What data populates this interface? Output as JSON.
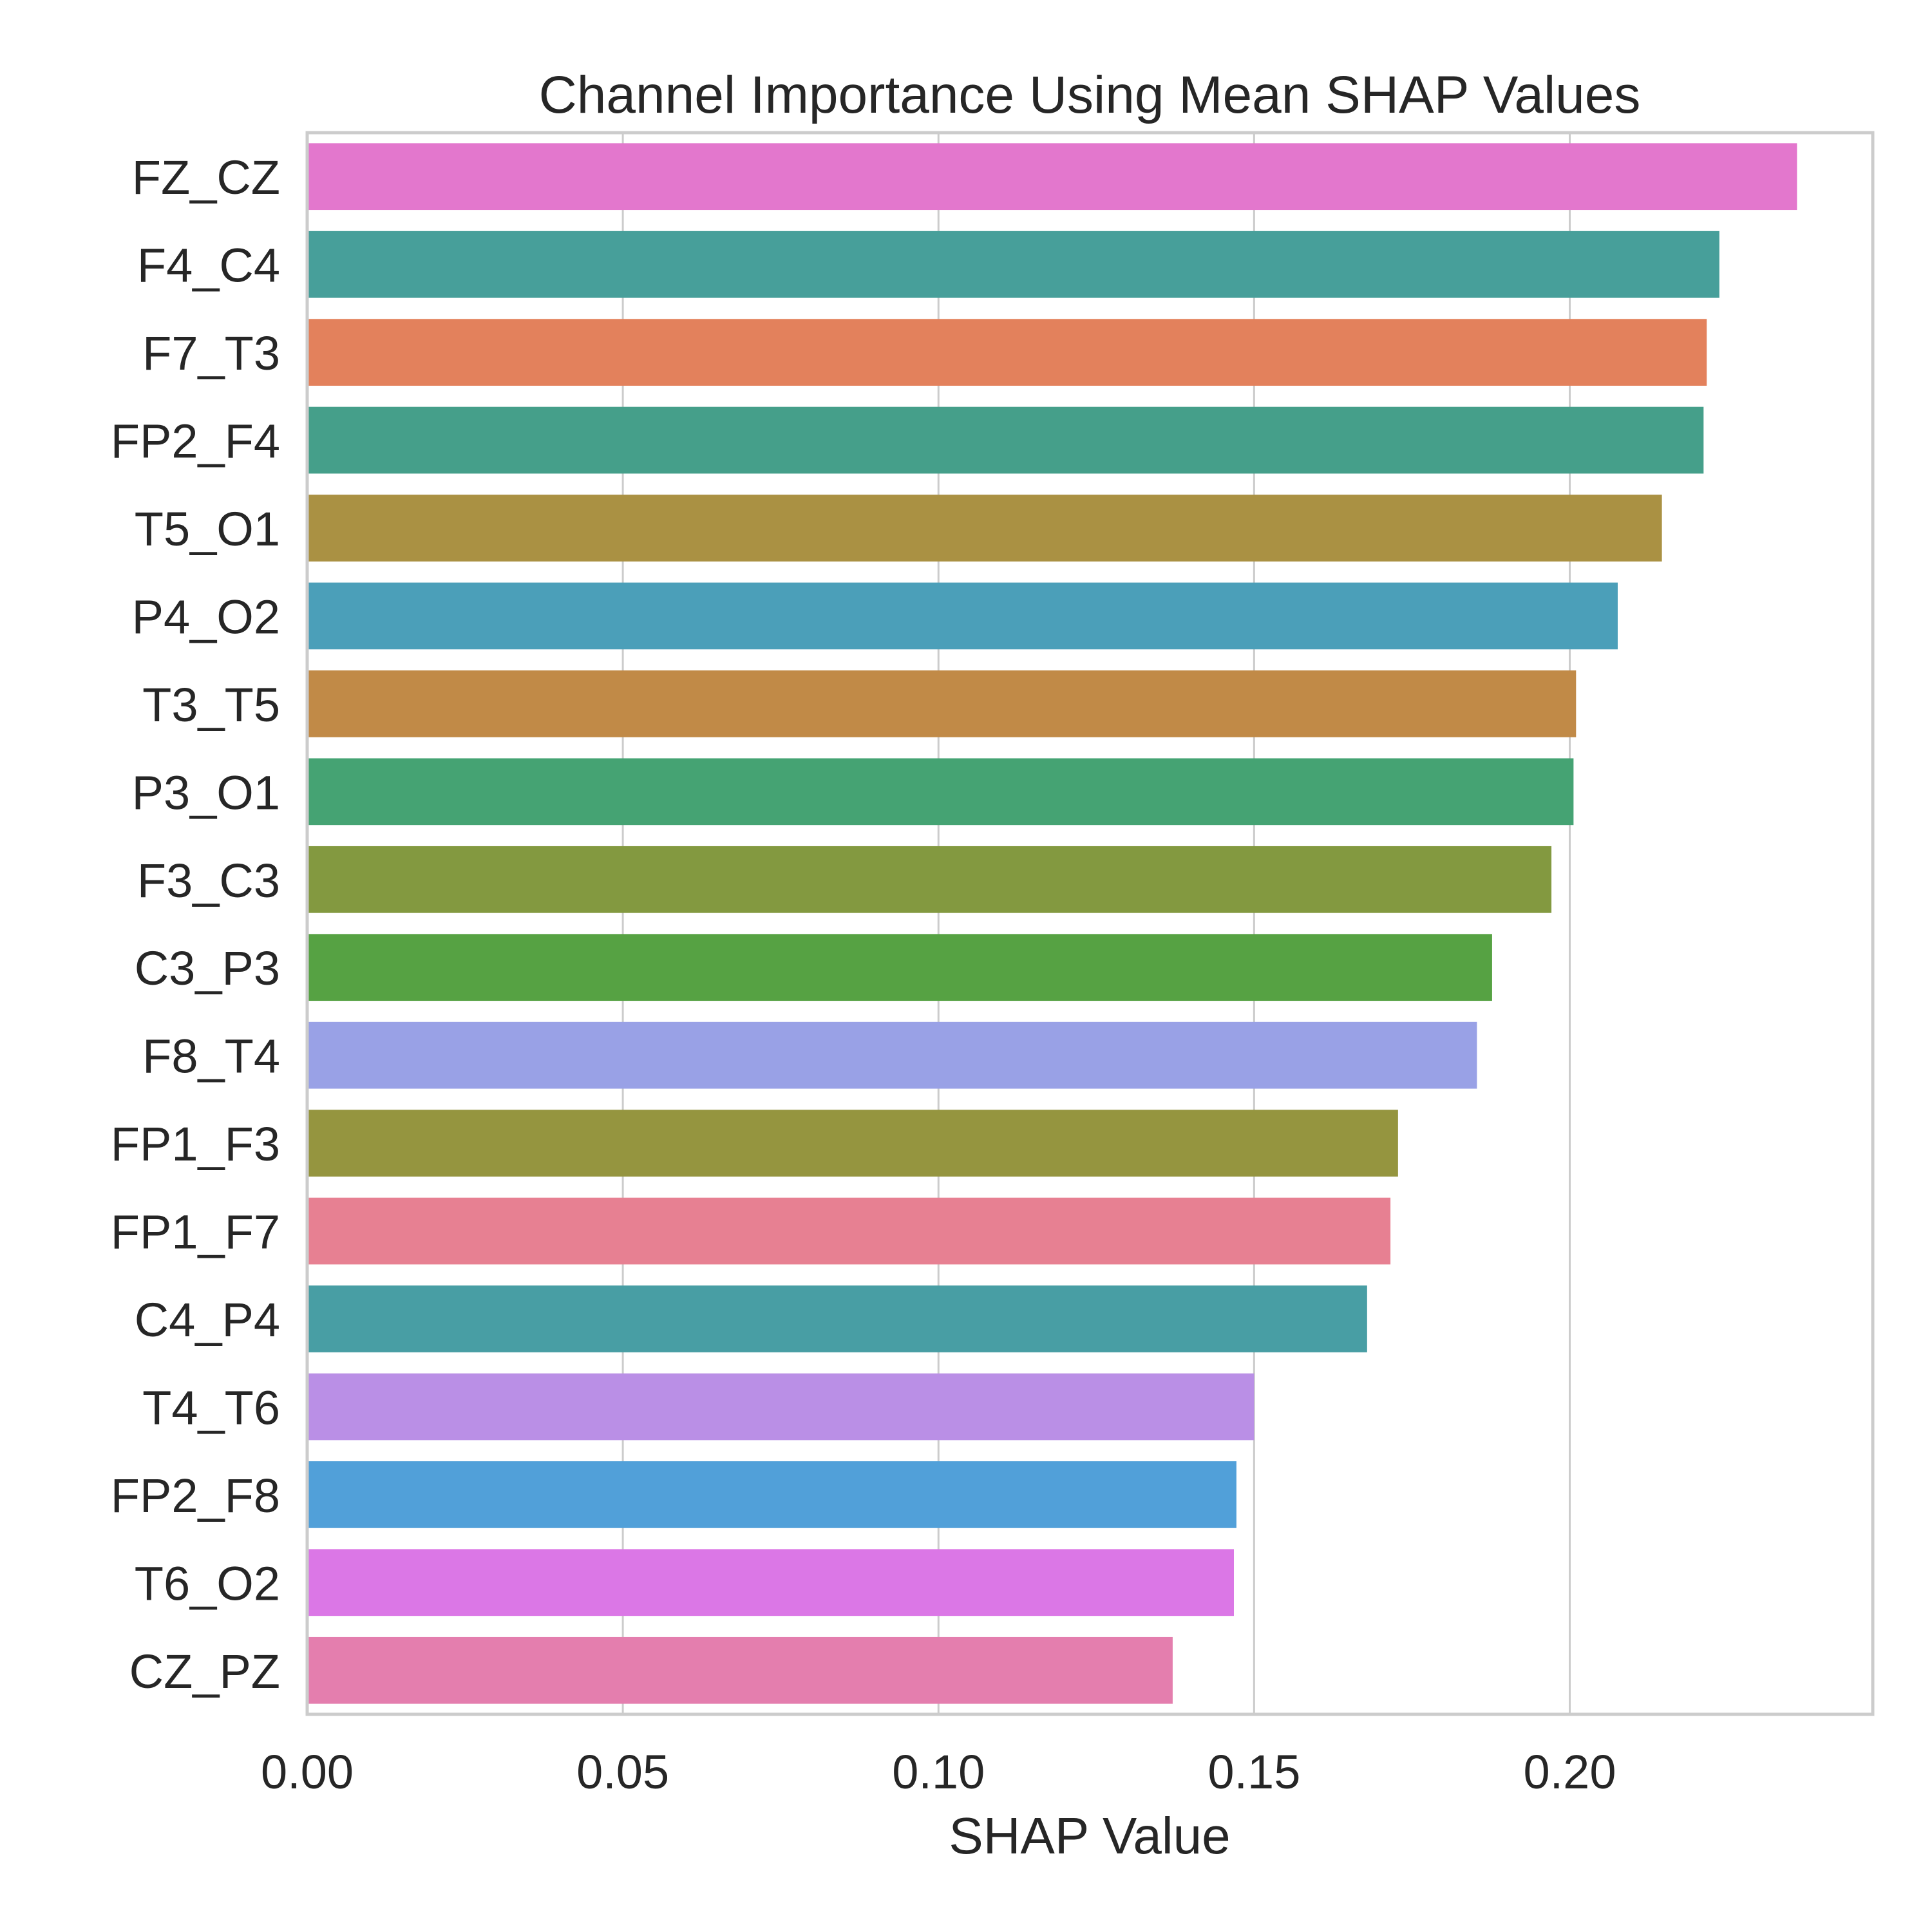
{
  "chart_data": {
    "type": "bar",
    "orientation": "horizontal",
    "title": "Channel Importance Using Mean SHAP Values",
    "xlabel": "SHAP Value",
    "ylabel": "",
    "xlim": [
      0,
      0.248
    ],
    "xticks": [
      0.0,
      0.05,
      0.1,
      0.15,
      0.2
    ],
    "xtick_labels": [
      "0.00",
      "0.05",
      "0.10",
      "0.15",
      "0.20"
    ],
    "grid": true,
    "categories": [
      "FZ_CZ",
      "F4_C4",
      "F7_T3",
      "FP2_F4",
      "T5_O1",
      "P4_O2",
      "T3_T5",
      "P3_O1",
      "F3_C3",
      "C3_P3",
      "F8_T4",
      "FP1_F3",
      "FP1_F7",
      "C4_P4",
      "T4_T6",
      "FP2_F8",
      "T6_O2",
      "CZ_PZ"
    ],
    "values": [
      0.236,
      0.2237,
      0.2217,
      0.2212,
      0.2146,
      0.2076,
      0.201,
      0.2006,
      0.1971,
      0.1877,
      0.1853,
      0.1728,
      0.1716,
      0.1679,
      0.15,
      0.1472,
      0.1468,
      0.1371
    ],
    "colors": [
      "#e377cd",
      "#479f9a",
      "#e3815c",
      "#459f8a",
      "#aa9143",
      "#4b9fb9",
      "#c18a47",
      "#45a373",
      "#839940",
      "#56a243",
      "#99a1e6",
      "#95953f",
      "#e78092",
      "#489ea4",
      "#ba8fe6",
      "#51a0d9",
      "#db77e6",
      "#e47eae"
    ]
  }
}
